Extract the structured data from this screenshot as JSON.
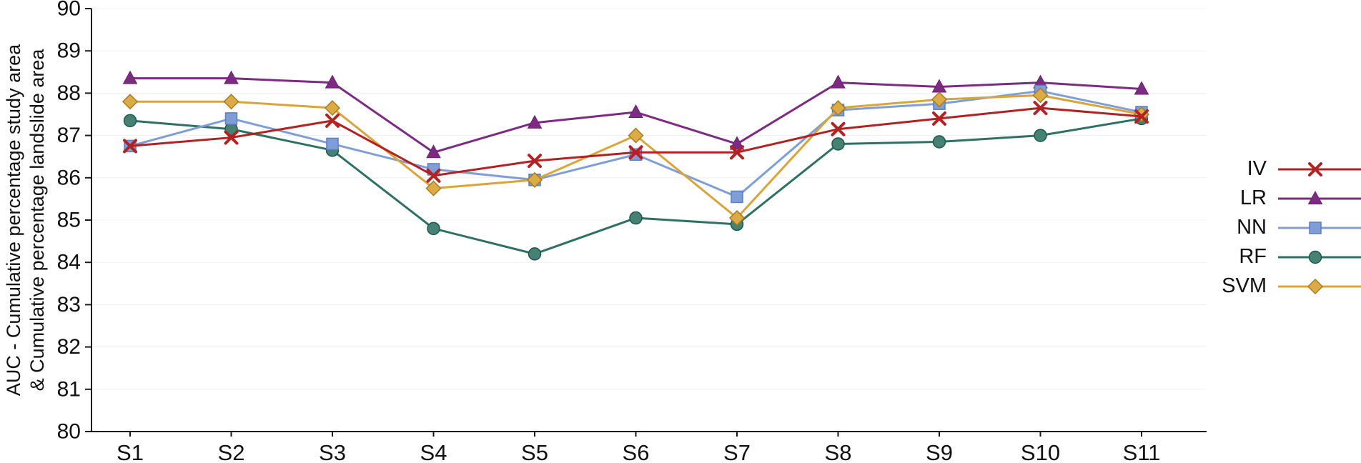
{
  "chart_data": {
    "type": "line",
    "title": "",
    "xlabel": "",
    "ylabel_lines": [
      "AUC - Cumulative percentage study area",
      "& Cumulative percentage landslide area"
    ],
    "categories": [
      "S1",
      "S2",
      "S3",
      "S4",
      "S5",
      "S6",
      "S7",
      "S8",
      "S9",
      "S10",
      "S11"
    ],
    "ylim": [
      80,
      90
    ],
    "ytick_step": 1,
    "grid": "faint-horizontal",
    "legend_position": "right",
    "axis_color": "#1a1a1a",
    "grid_color": "#efefef",
    "series": [
      {
        "name": "IV",
        "marker": "x",
        "color": "#b22222",
        "marker_fill": "#b22222",
        "edge": "#b22222",
        "values": [
          86.75,
          86.95,
          87.35,
          86.05,
          86.4,
          86.6,
          86.6,
          87.15,
          87.4,
          87.65,
          87.45
        ]
      },
      {
        "name": "LR",
        "marker": "triangle",
        "color": "#7d2a82",
        "marker_fill": "#7d2a82",
        "edge": "#6a2270",
        "values": [
          88.35,
          88.35,
          88.25,
          86.6,
          87.3,
          87.55,
          86.8,
          88.25,
          88.15,
          88.25,
          88.1
        ]
      },
      {
        "name": "NN",
        "marker": "square",
        "color": "#7f9ed7",
        "marker_fill": "#7f9ed7",
        "edge": "#5b7fc0",
        "values": [
          86.75,
          87.4,
          86.8,
          86.2,
          85.95,
          86.55,
          85.55,
          87.6,
          87.75,
          88.05,
          87.55
        ]
      },
      {
        "name": "RF",
        "marker": "circle",
        "color": "#2f7065",
        "marker_fill": "#468273",
        "edge": "#1e584e",
        "values": [
          87.35,
          87.15,
          86.65,
          84.8,
          84.2,
          85.05,
          84.9,
          86.8,
          86.85,
          87.0,
          87.4
        ]
      },
      {
        "name": "SVM",
        "marker": "diamond",
        "color": "#d9a43a",
        "marker_fill": "#ddab45",
        "edge": "#a87c20",
        "values": [
          87.8,
          87.8,
          87.65,
          85.75,
          85.95,
          87.0,
          85.05,
          87.65,
          87.85,
          87.95,
          87.5
        ]
      }
    ]
  }
}
